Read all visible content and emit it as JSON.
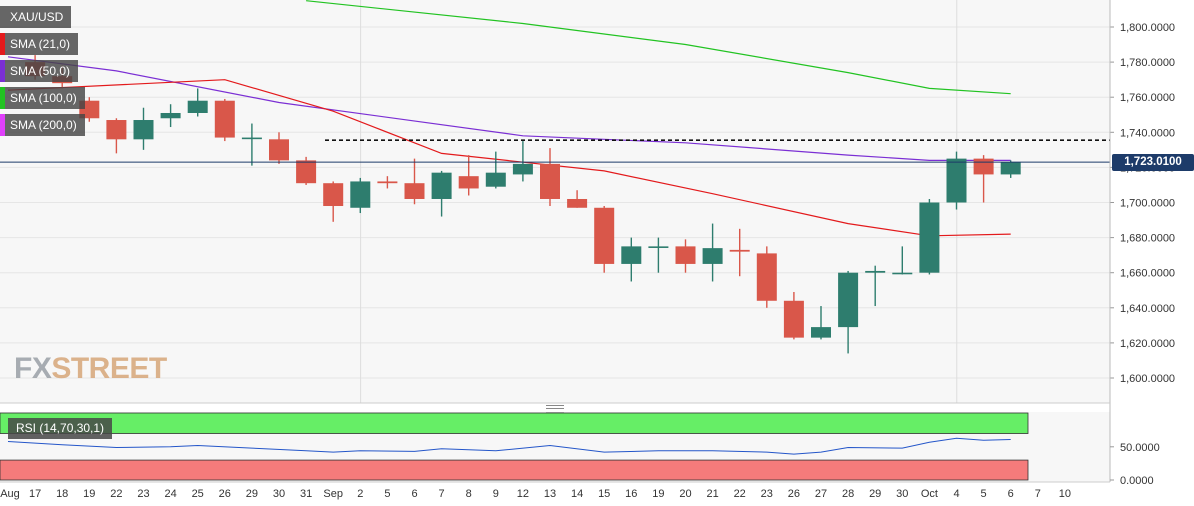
{
  "symbol": "XAU/USD",
  "legend": [
    {
      "label": "SMA (21,0)",
      "color": "#e31a1c"
    },
    {
      "label": "SMA (50,0)",
      "color": "#7b2fd4"
    },
    {
      "label": "SMA (100,0)",
      "color": "#22c322"
    },
    {
      "label": "SMA (200,0)",
      "color": "#e040fb"
    }
  ],
  "watermark": {
    "part1": "FX",
    "part2": "STREET"
  },
  "current_price_label": "1,723.0100",
  "rsi_label": "RSI (14,70,30,1)",
  "colors": {
    "up": "#2e7d6e",
    "down": "#d9574a",
    "grid": "#e6e6e6",
    "ob": "#66ee66",
    "os": "#f57b7b"
  },
  "chart_data": {
    "type": "candlestick",
    "x_labels": [
      "Aug",
      "17",
      "18",
      "19",
      "22",
      "23",
      "24",
      "25",
      "26",
      "29",
      "30",
      "31",
      "Sep",
      "2",
      "5",
      "6",
      "7",
      "8",
      "9",
      "12",
      "13",
      "14",
      "15",
      "16",
      "19",
      "20",
      "21",
      "22",
      "23",
      "26",
      "27",
      "28",
      "29",
      "30",
      "Oct",
      "4",
      "5",
      "6",
      "7",
      "10"
    ],
    "y_ticks": [
      "1,800.0000",
      "1,780.0000",
      "1,760.0000",
      "1,740.0000",
      "1,720.0000",
      "1,700.0000",
      "1,680.0000",
      "1,660.0000",
      "1,640.0000",
      "1,620.0000",
      "1,600.0000"
    ],
    "y_tick_values": [
      1800,
      1780,
      1760,
      1740,
      1720,
      1700,
      1680,
      1660,
      1640,
      1620,
      1600
    ],
    "ylim": [
      1586,
      1815
    ],
    "resistance_level": 1735.5,
    "last_price": 1723.01,
    "candles": [
      {
        "x": 1,
        "open": 1780,
        "high": 1784,
        "low": 1770,
        "close": 1772
      },
      {
        "x": 2,
        "open": 1772,
        "high": 1778,
        "low": 1765,
        "close": 1768
      },
      {
        "x": 3,
        "open": 1758,
        "high": 1760,
        "low": 1746,
        "close": 1748
      },
      {
        "x": 4,
        "open": 1747,
        "high": 1748,
        "low": 1728,
        "close": 1736
      },
      {
        "x": 5,
        "open": 1736,
        "high": 1754,
        "low": 1730,
        "close": 1747
      },
      {
        "x": 6,
        "open": 1748,
        "high": 1756,
        "low": 1743,
        "close": 1751
      },
      {
        "x": 7,
        "open": 1751,
        "high": 1765,
        "low": 1749,
        "close": 1758
      },
      {
        "x": 8,
        "open": 1758,
        "high": 1759,
        "low": 1735,
        "close": 1737
      },
      {
        "x": 9,
        "open": 1737,
        "high": 1745,
        "low": 1721,
        "close": 1737
      },
      {
        "x": 10,
        "open": 1736,
        "high": 1740,
        "low": 1722,
        "close": 1724
      },
      {
        "x": 11,
        "open": 1724,
        "high": 1726,
        "low": 1710,
        "close": 1711
      },
      {
        "x": 12,
        "open": 1711,
        "high": 1712,
        "low": 1689,
        "close": 1698
      },
      {
        "x": 13,
        "open": 1697,
        "high": 1714,
        "low": 1694,
        "close": 1712
      },
      {
        "x": 14,
        "open": 1712,
        "high": 1715,
        "low": 1708,
        "close": 1711
      },
      {
        "x": 15,
        "open": 1711,
        "high": 1725,
        "low": 1699,
        "close": 1702
      },
      {
        "x": 16,
        "open": 1702,
        "high": 1718,
        "low": 1692,
        "close": 1717
      },
      {
        "x": 17,
        "open": 1715,
        "high": 1727,
        "low": 1704,
        "close": 1708
      },
      {
        "x": 18,
        "open": 1709,
        "high": 1729,
        "low": 1708,
        "close": 1717
      },
      {
        "x": 19,
        "open": 1716,
        "high": 1735,
        "low": 1712,
        "close": 1722
      },
      {
        "x": 20,
        "open": 1722,
        "high": 1731,
        "low": 1698,
        "close": 1702
      },
      {
        "x": 21,
        "open": 1702,
        "high": 1707,
        "low": 1697,
        "close": 1697
      },
      {
        "x": 22,
        "open": 1697,
        "high": 1698,
        "low": 1660,
        "close": 1665
      },
      {
        "x": 23,
        "open": 1665,
        "high": 1680,
        "low": 1655,
        "close": 1675
      },
      {
        "x": 24,
        "open": 1675,
        "high": 1680,
        "low": 1660,
        "close": 1675
      },
      {
        "x": 25,
        "open": 1675,
        "high": 1679,
        "low": 1660,
        "close": 1665
      },
      {
        "x": 26,
        "open": 1665,
        "high": 1688,
        "low": 1655,
        "close": 1674
      },
      {
        "x": 27,
        "open": 1673,
        "high": 1685,
        "low": 1658,
        "close": 1672
      },
      {
        "x": 28,
        "open": 1671,
        "high": 1675,
        "low": 1640,
        "close": 1644
      },
      {
        "x": 29,
        "open": 1644,
        "high": 1649,
        "low": 1622,
        "close": 1623
      },
      {
        "x": 30,
        "open": 1623,
        "high": 1641,
        "low": 1622,
        "close": 1629
      },
      {
        "x": 31,
        "open": 1629,
        "high": 1661,
        "low": 1614,
        "close": 1660
      },
      {
        "x": 32,
        "open": 1660,
        "high": 1664,
        "low": 1641,
        "close": 1661
      },
      {
        "x": 33,
        "open": 1660,
        "high": 1675,
        "low": 1659,
        "close": 1660
      },
      {
        "x": 34,
        "open": 1660,
        "high": 1702,
        "low": 1659,
        "close": 1700
      },
      {
        "x": 35,
        "open": 1700,
        "high": 1729,
        "low": 1696,
        "close": 1725
      },
      {
        "x": 36,
        "open": 1725,
        "high": 1727,
        "low": 1700,
        "close": 1716
      },
      {
        "x": 37,
        "open": 1716,
        "high": 1724,
        "low": 1714,
        "close": 1723
      }
    ],
    "sma_21": [
      [
        0,
        1764
      ],
      [
        8,
        1770
      ],
      [
        12,
        1752
      ],
      [
        16,
        1728
      ],
      [
        22,
        1718
      ],
      [
        26,
        1705
      ],
      [
        31,
        1688
      ],
      [
        34,
        1681
      ],
      [
        37,
        1682
      ]
    ],
    "sma_50": [
      [
        0,
        1783
      ],
      [
        4,
        1775
      ],
      [
        10,
        1757
      ],
      [
        19,
        1738
      ],
      [
        25,
        1734
      ],
      [
        31,
        1727
      ],
      [
        34,
        1724
      ],
      [
        37,
        1724
      ]
    ],
    "sma_100": [
      [
        11,
        1815
      ],
      [
        19,
        1802
      ],
      [
        25,
        1790
      ],
      [
        31,
        1774
      ],
      [
        34,
        1765
      ],
      [
        37,
        1762
      ]
    ],
    "rsi": {
      "ylim": [
        0,
        100
      ],
      "y_ticks": [
        "50.0000",
        "0.0000"
      ],
      "y_tick_values": [
        50,
        0
      ],
      "overbought": 70,
      "oversold": 30,
      "values": [
        [
          0,
          58
        ],
        [
          2,
          53
        ],
        [
          4,
          49
        ],
        [
          6,
          50
        ],
        [
          7,
          52
        ],
        [
          9,
          48
        ],
        [
          11,
          44
        ],
        [
          12,
          42
        ],
        [
          13,
          44
        ],
        [
          15,
          43
        ],
        [
          16,
          47
        ],
        [
          18,
          44
        ],
        [
          20,
          52
        ],
        [
          22,
          42
        ],
        [
          24,
          44
        ],
        [
          26,
          44
        ],
        [
          28,
          42
        ],
        [
          29,
          39
        ],
        [
          30,
          42
        ],
        [
          31,
          49
        ],
        [
          33,
          48
        ],
        [
          34,
          57
        ],
        [
          35,
          63
        ],
        [
          36,
          60
        ],
        [
          37,
          61
        ]
      ]
    }
  }
}
